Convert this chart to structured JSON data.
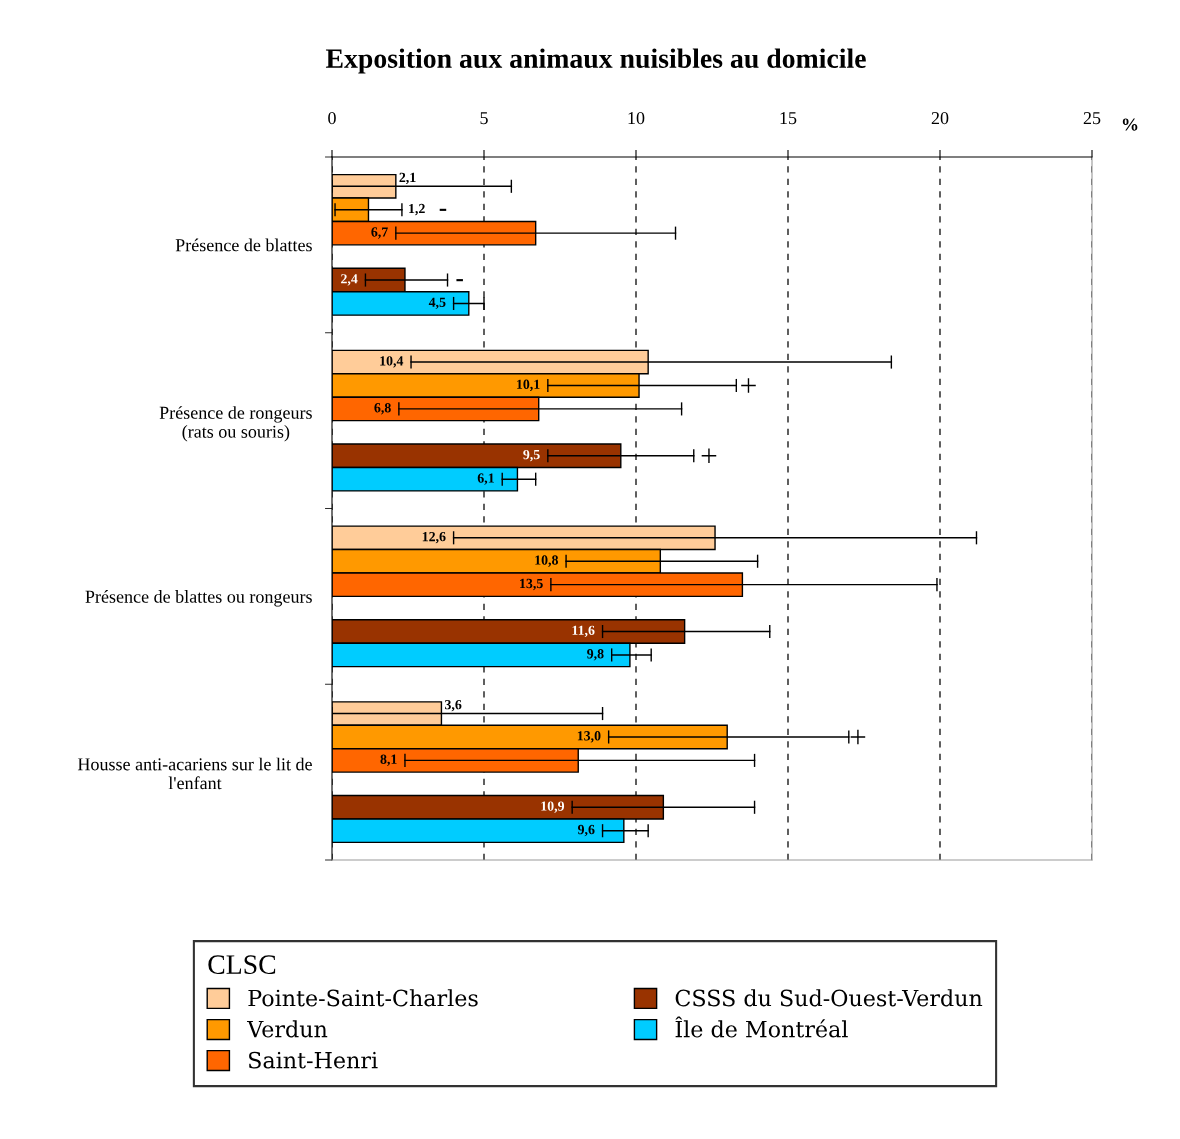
{
  "chart_data": {
    "type": "bar",
    "orientation": "horizontal",
    "title": "Exposition aux animaux nuisibles au domicile",
    "xlabel": "%",
    "legend_title": "CLSC",
    "categories": [
      "Présence de blattes",
      "Présence de rongeurs\n(rats ou souris)",
      "Présence de blattes ou rongeurs",
      "Housse anti-acariens sur le lit de\nl'enfant"
    ],
    "series": [
      {
        "name": "Pointe-Saint-Charles",
        "color": "#ffcc99",
        "values": [
          2.1,
          10.4,
          12.6,
          3.6
        ],
        "value_labels": [
          "2,1",
          "10,4",
          "12,6",
          "3,6"
        ],
        "errors": [
          [
            0.0,
            5.9
          ],
          [
            2.6,
            18.4
          ],
          [
            4.0,
            21.2
          ],
          [
            0.0,
            8.9
          ]
        ]
      },
      {
        "name": "Verdun",
        "color": "#ff9900",
        "values": [
          1.2,
          10.1,
          10.8,
          13.0
        ],
        "value_labels": [
          "1,2",
          "10,1",
          "10,8",
          "13,0"
        ],
        "errors": [
          [
            0.1,
            2.3
          ],
          [
            7.1,
            13.3
          ],
          [
            7.7,
            14.0
          ],
          [
            9.1,
            17.0
          ]
        ]
      },
      {
        "name": "Saint-Henri",
        "color": "#ff6600",
        "values": [
          6.7,
          6.8,
          13.5,
          8.1
        ],
        "value_labels": [
          "6,7",
          "6,8",
          "13,5",
          "8,1"
        ],
        "errors": [
          [
            2.1,
            11.3
          ],
          [
            2.2,
            11.5
          ],
          [
            7.2,
            19.9
          ],
          [
            2.4,
            13.9
          ]
        ]
      },
      {
        "name": "CSSS du Sud-Ouest-Verdun",
        "color": "#993300",
        "values": [
          2.4,
          9.5,
          11.6,
          10.9
        ],
        "value_labels": [
          "2,4",
          "9,5",
          "11,6",
          "10,9"
        ],
        "errors": [
          [
            1.1,
            3.8
          ],
          [
            7.1,
            11.9
          ],
          [
            8.9,
            14.4
          ],
          [
            7.9,
            13.9
          ]
        ]
      },
      {
        "name": "Île de Montréal",
        "color": "#00ccff",
        "values": [
          4.5,
          6.1,
          9.8,
          9.6
        ],
        "value_labels": [
          "4,5",
          "6,1",
          "9,8",
          "9,6"
        ],
        "errors": [
          [
            4.0,
            5.0
          ],
          [
            5.6,
            6.7
          ],
          [
            9.2,
            10.5
          ],
          [
            8.9,
            10.4
          ]
        ]
      },
      {
        "type": "scatter",
        "marker": "cross",
        "color": "#000000",
        "values": [
          null,
          13.7,
          null,
          17.3
        ]
      },
      {
        "type": "scatter",
        "marker": "cross",
        "color": "#000000",
        "values": [
          null,
          12.4,
          null,
          null
        ]
      }
    ],
    "annotations": [
      {
        "text": "-",
        "x": 2.3,
        "y": "Présence de blattes"
      },
      {
        "text": "-",
        "x": 3.8,
        "y": "Présence de blattes"
      }
    ],
    "xlim": [
      0,
      25
    ],
    "xticks": [
      0,
      5,
      10,
      15,
      20,
      25
    ],
    "grid": "x",
    "legend": "bottom"
  }
}
